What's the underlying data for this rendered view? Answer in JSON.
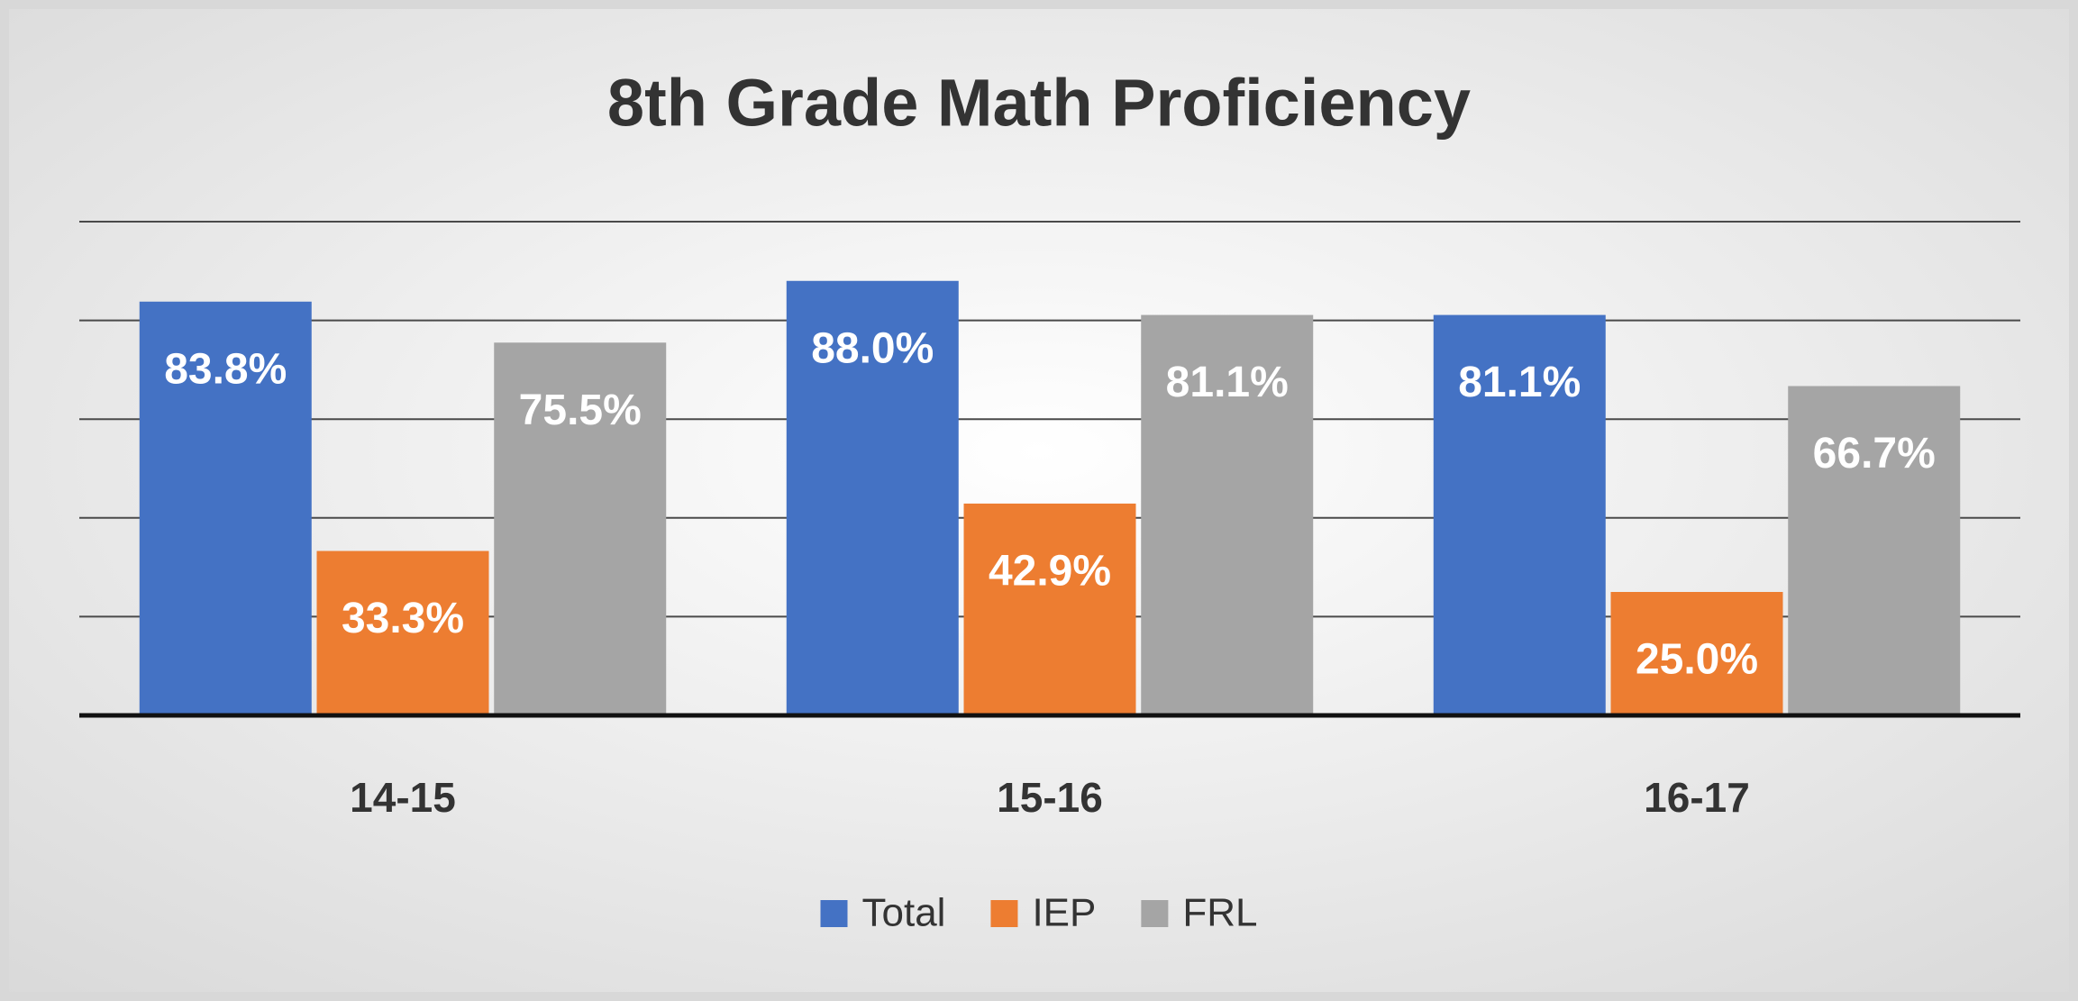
{
  "chart_data": {
    "type": "bar",
    "title": "8th Grade Math Proficiency",
    "categories": [
      "14-15",
      "15-16",
      "16-17"
    ],
    "series": [
      {
        "name": "Total",
        "color": "#4472c4",
        "values": [
          83.8,
          88.0,
          81.1
        ],
        "value_labels": [
          "83.8%",
          "88.0%",
          "81.1%"
        ]
      },
      {
        "name": "IEP",
        "color": "#ed7d31",
        "values": [
          33.3,
          42.9,
          25.0
        ],
        "value_labels": [
          "33.3%",
          "42.9%",
          "25.0%"
        ]
      },
      {
        "name": "FRL",
        "color": "#a5a5a5",
        "values": [
          75.5,
          81.1,
          66.7
        ],
        "value_labels": [
          "75.5%",
          "81.1%",
          "66.7%"
        ]
      }
    ],
    "ylim": [
      0,
      100
    ],
    "yticks": [
      0,
      20,
      40,
      60,
      80,
      100
    ],
    "grid": true,
    "legend": "bottom"
  }
}
